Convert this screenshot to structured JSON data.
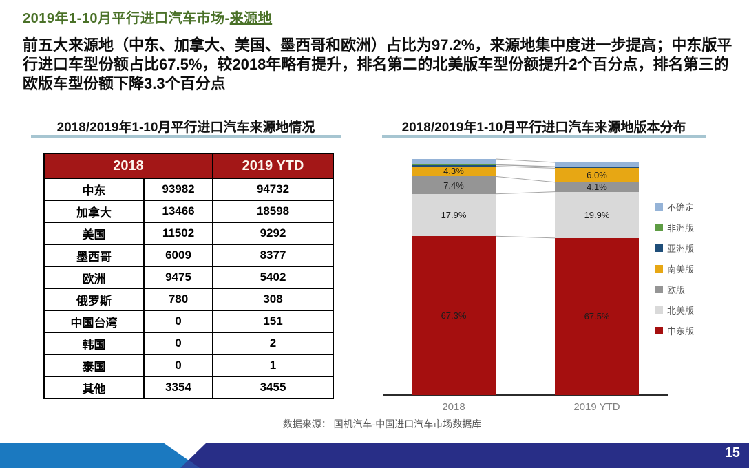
{
  "slide": {
    "title_prefix": "2019年1-10月平行进口汽车市场-",
    "title_emphasis": "来源地",
    "body_text": "前五大来源地（中东、加拿大、美国、墨西哥和欧洲）占比为97.2%，来源地集中度进一步提高；中东版平行进口车型份额占比67.5%，较2018年略有提升，排名第二的北美版车型份额提升2个百分点，排名第三的欧版车型份额下降3.3个百分点",
    "source_note": "数据来源： 国机汽车-中国进口汽车市场数据库",
    "page_number": "15"
  },
  "colors": {
    "title_green": "#4a7128",
    "table_header_red": "#a31717",
    "title_underline_teal": "#a6c5d1",
    "footer_navy": "#282e87",
    "footer_bright_blue": "#1b79c0",
    "footer_overlap_blue": "#2b49a0"
  },
  "table": {
    "title": "2018/2019年1-10月平行进口汽车来源地情况",
    "header": [
      "2018",
      "2019 YTD"
    ],
    "rows": [
      {
        "label": "中东",
        "y2018": "93982",
        "y2019": "94732"
      },
      {
        "label": "加拿大",
        "y2018": "13466",
        "y2019": "18598"
      },
      {
        "label": "美国",
        "y2018": "11502",
        "y2019": "9292"
      },
      {
        "label": "墨西哥",
        "y2018": "6009",
        "y2019": "8377"
      },
      {
        "label": "欧洲",
        "y2018": "9475",
        "y2019": "5402"
      },
      {
        "label": "俄罗斯",
        "y2018": "780",
        "y2019": "308"
      },
      {
        "label": "中国台湾",
        "y2018": "0",
        "y2019": "151"
      },
      {
        "label": "韩国",
        "y2018": "0",
        "y2019": "2"
      },
      {
        "label": "泰国",
        "y2018": "0",
        "y2019": "1"
      },
      {
        "label": "其他",
        "y2018": "3354",
        "y2019": "3455"
      }
    ]
  },
  "chart_data": {
    "type": "bar",
    "subtype": "stacked-100-percent",
    "title": "2018/2019年1-10月平行进口汽车来源地版本分布",
    "categories": [
      "2018",
      "2019 YTD"
    ],
    "legend_position": "right",
    "ylim": [
      0,
      100
    ],
    "series": [
      {
        "name": "不确定",
        "color": "#95b3d7",
        "values": [
          2.4,
          1.8
        ],
        "labels": [
          "",
          ""
        ]
      },
      {
        "name": "非洲版",
        "color": "#5e9c44",
        "values": [
          0.1,
          0.1
        ],
        "labels": [
          "",
          ""
        ]
      },
      {
        "name": "亚洲版",
        "color": "#1f4e79",
        "values": [
          0.6,
          0.6
        ],
        "labels": [
          "",
          ""
        ]
      },
      {
        "name": "南美版",
        "color": "#e7a714",
        "values": [
          4.3,
          6.0
        ],
        "labels": [
          "4.3%",
          "6.0%"
        ]
      },
      {
        "name": "欧版",
        "color": "#959595",
        "values": [
          7.4,
          4.1
        ],
        "labels": [
          "7.4%",
          "4.1%"
        ]
      },
      {
        "name": "北美版",
        "color": "#d9d9d9",
        "values": [
          17.9,
          19.9
        ],
        "labels": [
          "17.9%",
          "19.9%"
        ]
      },
      {
        "name": "中东版",
        "color": "#a50f0f",
        "values": [
          67.3,
          67.5
        ],
        "labels": [
          "67.3%",
          "67.5%"
        ]
      }
    ]
  }
}
